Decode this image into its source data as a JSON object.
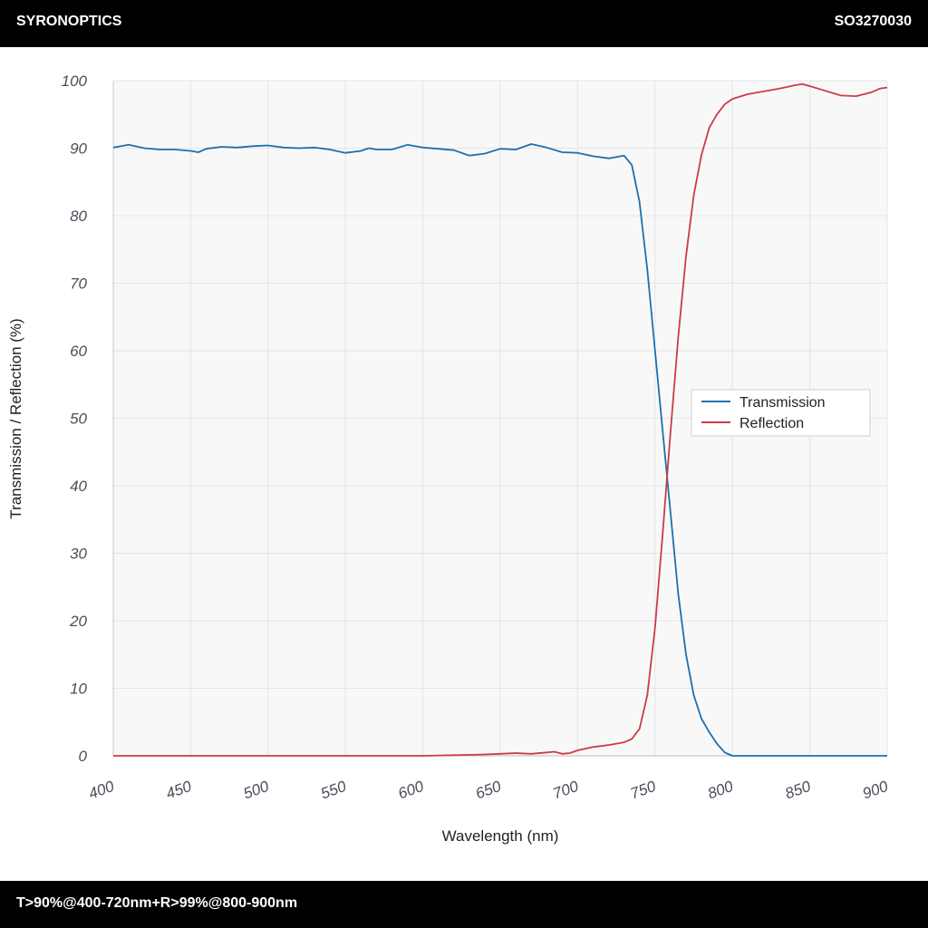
{
  "header": {
    "brand": "SYRONOPTICS",
    "part_number": "SO3270030"
  },
  "footer": {
    "spec": "T>90%@400-720nm+R>99%@800-900nm"
  },
  "colors": {
    "transmission": "#1f6fad",
    "reflection": "#cc3b48",
    "plot_bg": "#f8f8f9",
    "grid": "#e4e4e6"
  },
  "chart_data": {
    "type": "line",
    "title": "",
    "xlabel": "Wavelength (nm)",
    "ylabel": "Transmission / Reflection (%)",
    "xlim": [
      400,
      900
    ],
    "ylim": [
      0,
      100
    ],
    "x_ticks": [
      400,
      450,
      500,
      550,
      600,
      650,
      700,
      750,
      800,
      850,
      900
    ],
    "y_ticks": [
      0,
      10,
      20,
      30,
      40,
      50,
      60,
      70,
      80,
      90,
      100
    ],
    "grid": true,
    "legend_position": "right-middle",
    "series": [
      {
        "name": "Transmission",
        "color": "#1f6fad",
        "points": [
          [
            400,
            90.1
          ],
          [
            410,
            90.5
          ],
          [
            420,
            90.0
          ],
          [
            430,
            89.8
          ],
          [
            440,
            89.8
          ],
          [
            450,
            89.6
          ],
          [
            455,
            89.4
          ],
          [
            460,
            89.9
          ],
          [
            470,
            90.2
          ],
          [
            480,
            90.1
          ],
          [
            490,
            90.3
          ],
          [
            500,
            90.4
          ],
          [
            510,
            90.1
          ],
          [
            520,
            90.0
          ],
          [
            530,
            90.1
          ],
          [
            540,
            89.8
          ],
          [
            550,
            89.3
          ],
          [
            560,
            89.6
          ],
          [
            565,
            90.0
          ],
          [
            570,
            89.8
          ],
          [
            580,
            89.8
          ],
          [
            590,
            90.5
          ],
          [
            600,
            90.1
          ],
          [
            610,
            89.9
          ],
          [
            620,
            89.7
          ],
          [
            630,
            88.9
          ],
          [
            640,
            89.2
          ],
          [
            650,
            89.9
          ],
          [
            660,
            89.8
          ],
          [
            670,
            90.6
          ],
          [
            680,
            90.1
          ],
          [
            690,
            89.4
          ],
          [
            700,
            89.3
          ],
          [
            710,
            88.8
          ],
          [
            720,
            88.5
          ],
          [
            730,
            88.9
          ],
          [
            735,
            87.5
          ],
          [
            740,
            82.0
          ],
          [
            745,
            72.0
          ],
          [
            750,
            60.0
          ],
          [
            755,
            48.0
          ],
          [
            760,
            36.0
          ],
          [
            765,
            24.0
          ],
          [
            770,
            15.0
          ],
          [
            775,
            9.0
          ],
          [
            780,
            5.5
          ],
          [
            785,
            3.5
          ],
          [
            790,
            1.8
          ],
          [
            795,
            0.5
          ],
          [
            800,
            0.0
          ],
          [
            850,
            0.0
          ],
          [
            900,
            0.0
          ]
        ]
      },
      {
        "name": "Reflection",
        "color": "#cc3b48",
        "points": [
          [
            400,
            0.0
          ],
          [
            550,
            0.0
          ],
          [
            600,
            0.0
          ],
          [
            620,
            0.1
          ],
          [
            640,
            0.2
          ],
          [
            650,
            0.3
          ],
          [
            660,
            0.4
          ],
          [
            670,
            0.3
          ],
          [
            680,
            0.5
          ],
          [
            685,
            0.6
          ],
          [
            690,
            0.3
          ],
          [
            695,
            0.4
          ],
          [
            700,
            0.8
          ],
          [
            710,
            1.3
          ],
          [
            720,
            1.6
          ],
          [
            730,
            2.0
          ],
          [
            735,
            2.5
          ],
          [
            740,
            4.0
          ],
          [
            745,
            9.0
          ],
          [
            750,
            19.0
          ],
          [
            755,
            33.0
          ],
          [
            760,
            48.0
          ],
          [
            765,
            62.0
          ],
          [
            770,
            74.0
          ],
          [
            775,
            83.0
          ],
          [
            780,
            89.0
          ],
          [
            785,
            93.0
          ],
          [
            790,
            95.0
          ],
          [
            795,
            96.5
          ],
          [
            800,
            97.3
          ],
          [
            810,
            98.0
          ],
          [
            820,
            98.4
          ],
          [
            830,
            98.8
          ],
          [
            840,
            99.3
          ],
          [
            845,
            99.5
          ],
          [
            850,
            99.2
          ],
          [
            860,
            98.5
          ],
          [
            870,
            97.8
          ],
          [
            880,
            97.7
          ],
          [
            890,
            98.3
          ],
          [
            895,
            98.8
          ],
          [
            900,
            99.0
          ]
        ]
      }
    ]
  }
}
